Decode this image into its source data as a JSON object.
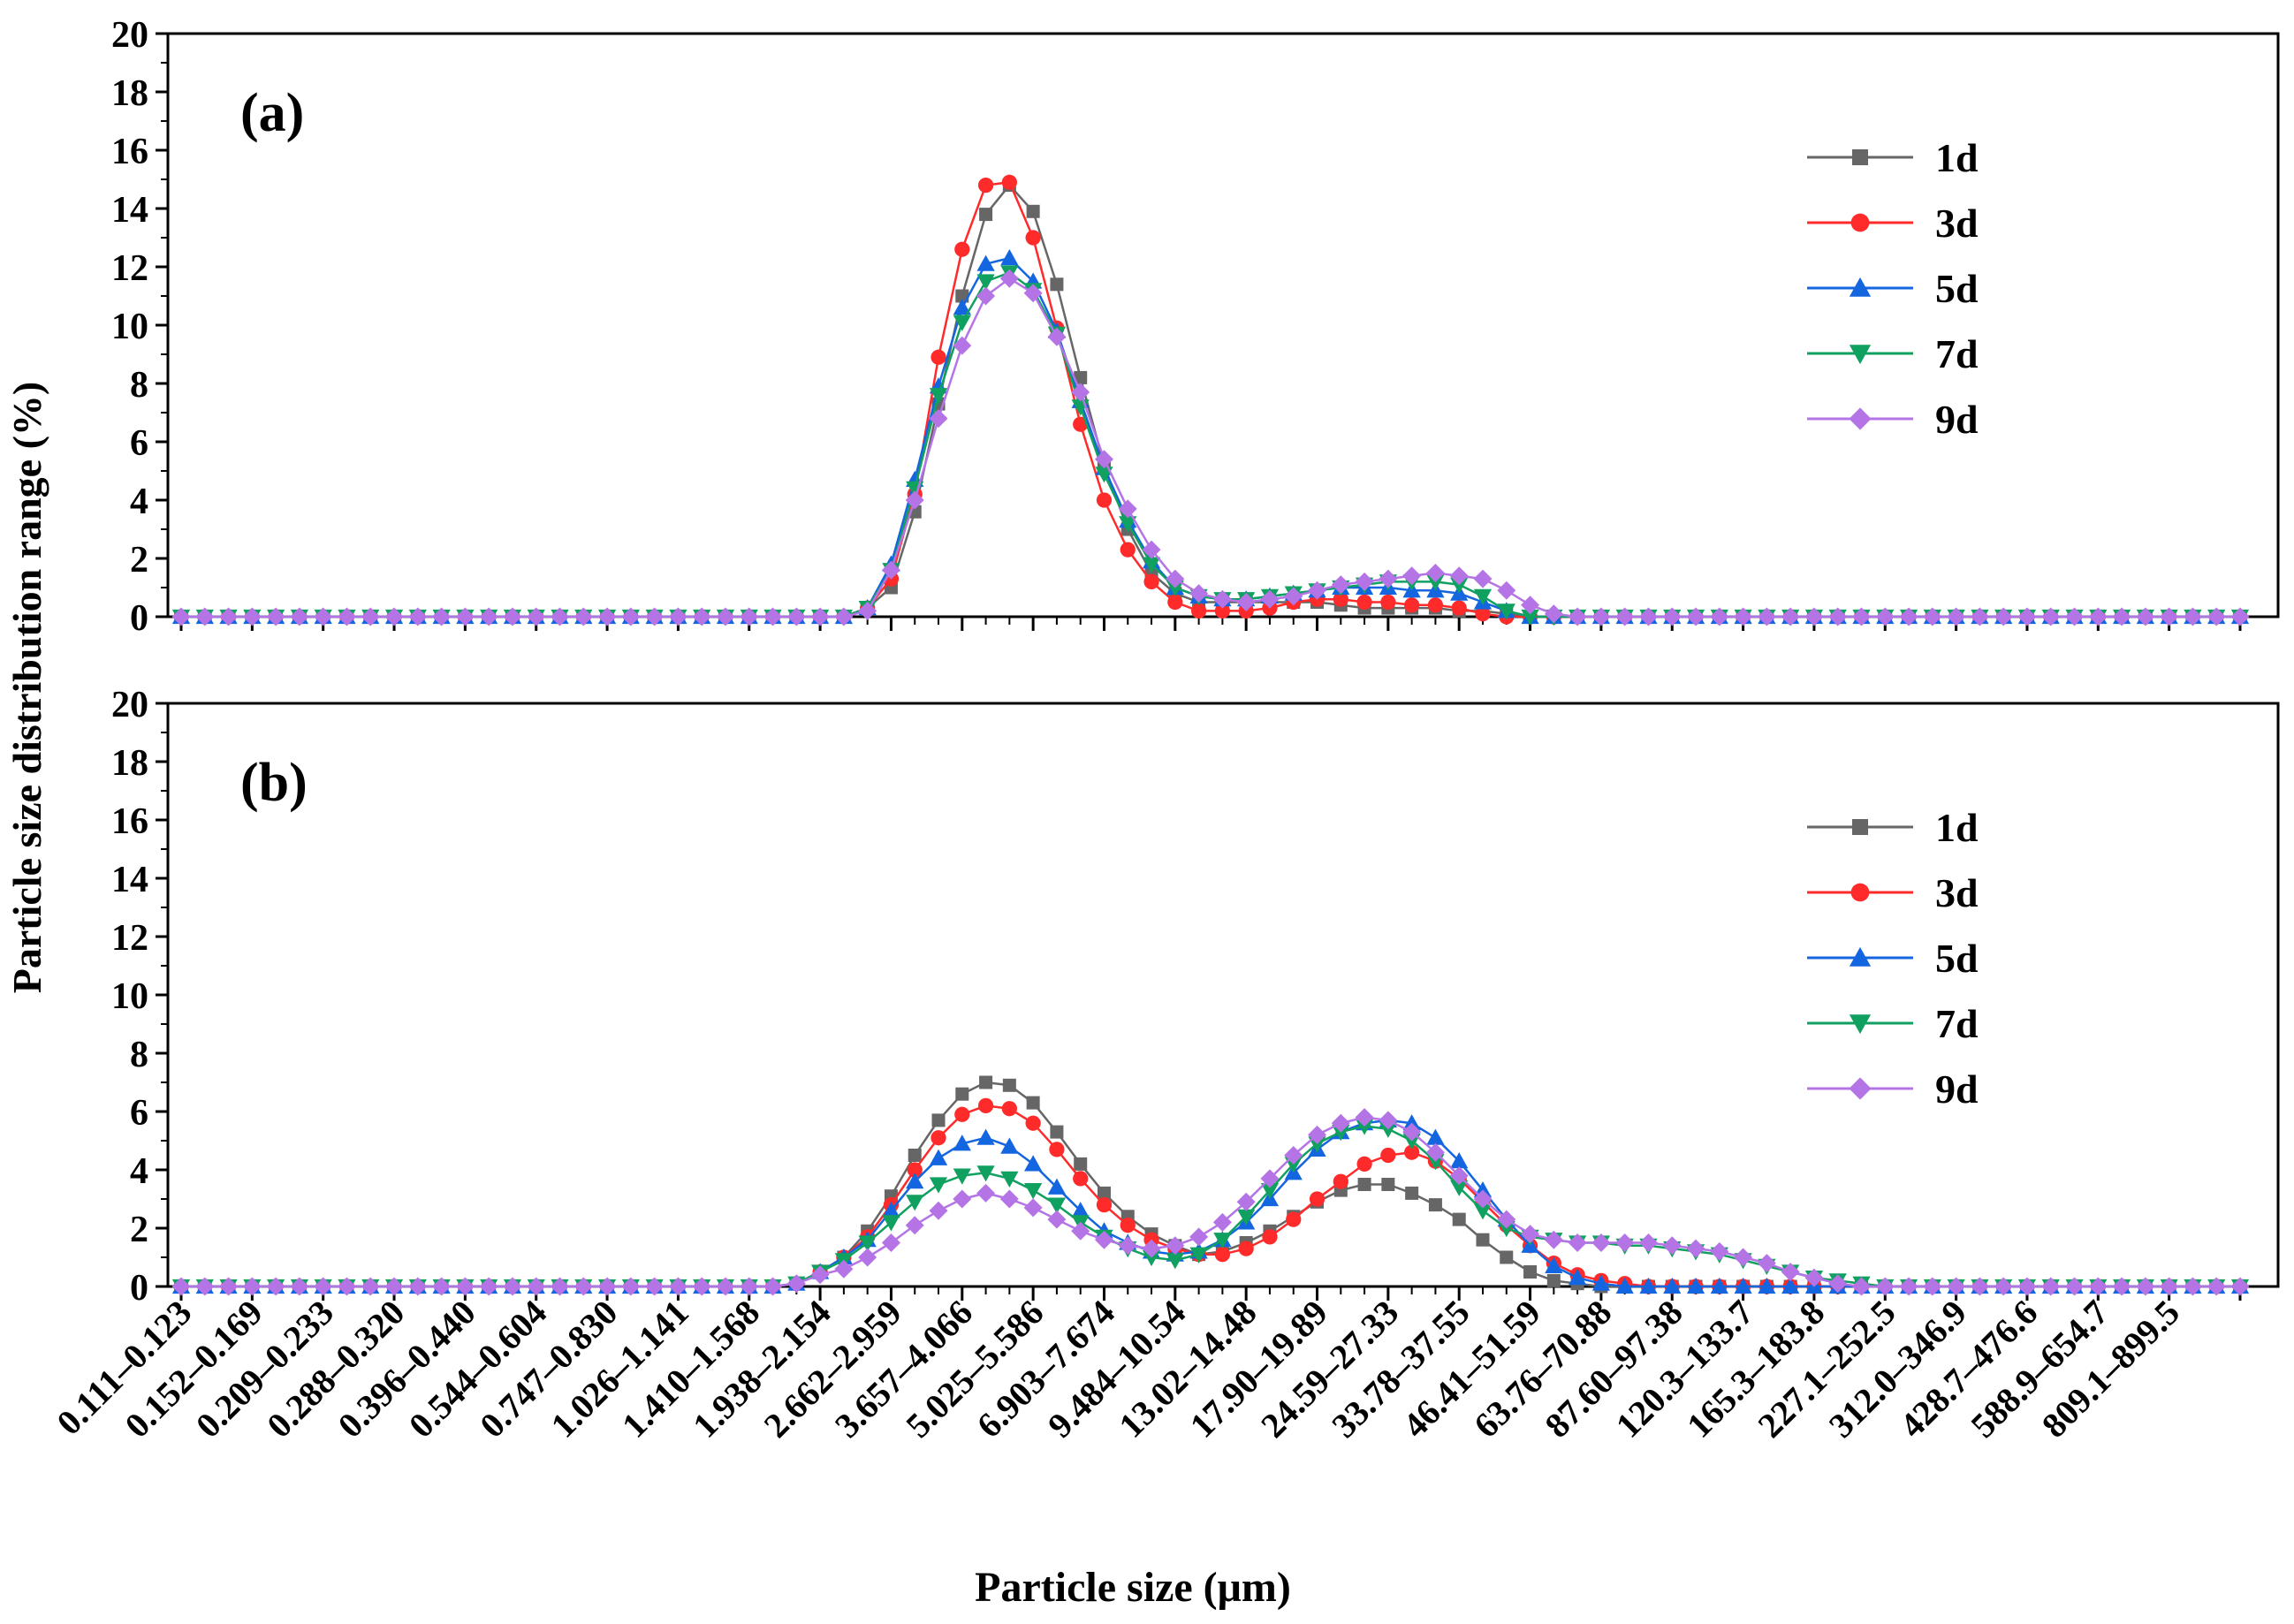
{
  "figure": {
    "ylabel": "Particle size distribution range (%)",
    "xlabel": "Particle size (μm)",
    "x_tick_labels": [
      "0.111–0.123",
      "0.152–0.169",
      "0.209–0.233",
      "0.288–0.320",
      "0.396–0.440",
      "0.544–0.604",
      "0.747–0.830",
      "1.026–1.141",
      "1.410–1.568",
      "1.938–2.154",
      "2.662–2.959",
      "3.657–4.066",
      "5.025–5.586",
      "6.903–7.674",
      "9.484–10.54",
      "13.02–14.48",
      "17.90–19.89",
      "24.59–27.33",
      "33.78–37.55",
      "46.41–51.59",
      "63.76–70.88",
      "87.60–97.38",
      "120.3–133.7",
      "165.3–183.8",
      "227.1–252.5",
      "312.0–346.9",
      "428.7–476.6",
      "588.9–654.7",
      "809.1–899.5"
    ]
  },
  "colors": {
    "1d": "#666666",
    "3d": "#ff2a2a",
    "5d": "#1466e0",
    "7d": "#10a060",
    "9d": "#b574e6"
  },
  "chart_data": [
    {
      "type": "line",
      "panel_label": "(a)",
      "ylim": [
        0,
        20
      ],
      "yticks": [
        0,
        2,
        4,
        6,
        8,
        10,
        12,
        14,
        16,
        18,
        20
      ],
      "x_points": 88,
      "x_tick_every": 3,
      "series": [
        {
          "name": "1d",
          "marker": "square",
          "values": [
            0,
            0,
            0,
            0,
            0,
            0,
            0,
            0,
            0,
            0,
            0,
            0,
            0,
            0,
            0,
            0,
            0,
            0,
            0,
            0,
            0,
            0,
            0,
            0,
            0,
            0,
            0,
            0,
            0,
            0.3,
            1.0,
            3.6,
            7.3,
            11.0,
            13.8,
            14.8,
            13.9,
            11.4,
            8.2,
            5.2,
            3.0,
            1.5,
            0.8,
            0.5,
            0.5,
            0.5,
            0.5,
            0.5,
            0.5,
            0.4,
            0.3,
            0.3,
            0.3,
            0.3,
            0.2,
            0.2,
            0.1,
            0,
            0,
            0,
            0,
            0,
            0,
            0,
            0,
            0,
            0,
            0,
            0,
            0,
            0,
            0,
            0,
            0,
            0,
            0,
            0,
            0,
            0,
            0,
            0,
            0,
            0,
            0,
            0,
            0,
            0,
            0
          ]
        },
        {
          "name": "3d",
          "marker": "circle",
          "values": [
            0,
            0,
            0,
            0,
            0,
            0,
            0,
            0,
            0,
            0,
            0,
            0,
            0,
            0,
            0,
            0,
            0,
            0,
            0,
            0,
            0,
            0,
            0,
            0,
            0,
            0,
            0,
            0,
            0,
            0.3,
            1.3,
            4.2,
            8.9,
            12.6,
            14.8,
            14.9,
            13.0,
            9.9,
            6.6,
            4.0,
            2.3,
            1.2,
            0.5,
            0.2,
            0.2,
            0.2,
            0.3,
            0.5,
            0.6,
            0.6,
            0.5,
            0.5,
            0.4,
            0.4,
            0.3,
            0.1,
            0,
            0,
            0,
            0,
            0,
            0,
            0,
            0,
            0,
            0,
            0,
            0,
            0,
            0,
            0,
            0,
            0,
            0,
            0,
            0,
            0,
            0,
            0,
            0,
            0,
            0,
            0,
            0,
            0,
            0,
            0,
            0
          ]
        },
        {
          "name": "5d",
          "marker": "triangle-up",
          "values": [
            0,
            0,
            0,
            0,
            0,
            0,
            0,
            0,
            0,
            0,
            0,
            0,
            0,
            0,
            0,
            0,
            0,
            0,
            0,
            0,
            0,
            0,
            0,
            0,
            0,
            0,
            0,
            0,
            0,
            0.3,
            1.8,
            4.7,
            7.9,
            10.6,
            12.1,
            12.3,
            11.5,
            9.8,
            7.4,
            5.1,
            3.3,
            1.9,
            1.0,
            0.7,
            0.6,
            0.6,
            0.7,
            0.8,
            0.9,
            1.0,
            1.0,
            1.0,
            0.9,
            0.9,
            0.8,
            0.5,
            0.2,
            0,
            0,
            0,
            0,
            0,
            0,
            0,
            0,
            0,
            0,
            0,
            0,
            0,
            0,
            0,
            0,
            0,
            0,
            0,
            0,
            0,
            0,
            0,
            0,
            0,
            0,
            0,
            0,
            0,
            0,
            0
          ]
        },
        {
          "name": "7d",
          "marker": "triangle-down",
          "values": [
            0,
            0,
            0,
            0,
            0,
            0,
            0,
            0,
            0,
            0,
            0,
            0,
            0,
            0,
            0,
            0,
            0,
            0,
            0,
            0,
            0,
            0,
            0,
            0,
            0,
            0,
            0,
            0,
            0,
            0.3,
            1.6,
            4.4,
            7.6,
            10.1,
            11.5,
            11.8,
            11.2,
            9.7,
            7.2,
            4.9,
            3.2,
            1.8,
            1.0,
            0.7,
            0.6,
            0.6,
            0.7,
            0.8,
            0.9,
            1.0,
            1.1,
            1.2,
            1.2,
            1.2,
            1.1,
            0.7,
            0.2,
            0,
            0,
            0,
            0,
            0,
            0,
            0,
            0,
            0,
            0,
            0,
            0,
            0,
            0,
            0,
            0,
            0,
            0,
            0,
            0,
            0,
            0,
            0,
            0,
            0,
            0,
            0,
            0,
            0,
            0,
            0
          ]
        },
        {
          "name": "9d",
          "marker": "diamond",
          "values": [
            0,
            0,
            0,
            0,
            0,
            0,
            0,
            0,
            0,
            0,
            0,
            0,
            0,
            0,
            0,
            0,
            0,
            0,
            0,
            0,
            0,
            0,
            0,
            0,
            0,
            0,
            0,
            0,
            0,
            0.2,
            1.6,
            4.0,
            6.8,
            9.3,
            11.0,
            11.6,
            11.1,
            9.6,
            7.7,
            5.4,
            3.7,
            2.3,
            1.3,
            0.8,
            0.6,
            0.5,
            0.6,
            0.7,
            0.9,
            1.1,
            1.2,
            1.3,
            1.4,
            1.5,
            1.4,
            1.3,
            0.9,
            0.4,
            0.1,
            0,
            0,
            0,
            0,
            0,
            0,
            0,
            0,
            0,
            0,
            0,
            0,
            0,
            0,
            0,
            0,
            0,
            0,
            0,
            0,
            0,
            0,
            0,
            0,
            0,
            0,
            0,
            0,
            0
          ]
        }
      ]
    },
    {
      "type": "line",
      "panel_label": "(b)",
      "ylim": [
        0,
        20
      ],
      "yticks": [
        0,
        2,
        4,
        6,
        8,
        10,
        12,
        14,
        16,
        18,
        20
      ],
      "x_points": 88,
      "x_tick_every": 3,
      "series": [
        {
          "name": "1d",
          "marker": "square",
          "values": [
            0,
            0,
            0,
            0,
            0,
            0,
            0,
            0,
            0,
            0,
            0,
            0,
            0,
            0,
            0,
            0,
            0,
            0,
            0,
            0,
            0,
            0,
            0,
            0,
            0,
            0,
            0.1,
            0.5,
            1.0,
            1.9,
            3.1,
            4.5,
            5.7,
            6.6,
            7.0,
            6.9,
            6.3,
            5.3,
            4.2,
            3.2,
            2.4,
            1.8,
            1.4,
            1.1,
            1.2,
            1.5,
            1.9,
            2.4,
            2.9,
            3.3,
            3.5,
            3.5,
            3.2,
            2.8,
            2.3,
            1.6,
            1.0,
            0.5,
            0.2,
            0.1,
            0,
            0,
            0,
            0,
            0,
            0,
            0,
            0,
            0,
            0,
            0,
            0,
            0,
            0,
            0,
            0,
            0,
            0,
            0,
            0,
            0,
            0,
            0,
            0,
            0,
            0,
            0,
            0
          ]
        },
        {
          "name": "3d",
          "marker": "circle",
          "values": [
            0,
            0,
            0,
            0,
            0,
            0,
            0,
            0,
            0,
            0,
            0,
            0,
            0,
            0,
            0,
            0,
            0,
            0,
            0,
            0,
            0,
            0,
            0,
            0,
            0,
            0,
            0.1,
            0.5,
            1.0,
            1.7,
            2.8,
            4.0,
            5.1,
            5.9,
            6.2,
            6.1,
            5.6,
            4.7,
            3.7,
            2.8,
            2.1,
            1.6,
            1.3,
            1.1,
            1.1,
            1.3,
            1.7,
            2.3,
            3.0,
            3.6,
            4.2,
            4.5,
            4.6,
            4.3,
            3.7,
            2.9,
            2.1,
            1.4,
            0.8,
            0.4,
            0.2,
            0.1,
            0,
            0,
            0,
            0,
            0,
            0,
            0,
            0,
            0,
            0,
            0,
            0,
            0,
            0,
            0,
            0,
            0,
            0,
            0,
            0,
            0,
            0,
            0,
            0,
            0,
            0
          ]
        },
        {
          "name": "5d",
          "marker": "triangle-up",
          "values": [
            0,
            0,
            0,
            0,
            0,
            0,
            0,
            0,
            0,
            0,
            0,
            0,
            0,
            0,
            0,
            0,
            0,
            0,
            0,
            0,
            0,
            0,
            0,
            0,
            0,
            0,
            0.1,
            0.5,
            1.0,
            1.6,
            2.6,
            3.6,
            4.4,
            4.9,
            5.1,
            4.8,
            4.2,
            3.4,
            2.6,
            1.9,
            1.5,
            1.2,
            1.1,
            1.2,
            1.6,
            2.2,
            3.0,
            3.9,
            4.7,
            5.3,
            5.6,
            5.7,
            5.6,
            5.1,
            4.3,
            3.3,
            2.3,
            1.4,
            0.7,
            0.3,
            0.1,
            0,
            0,
            0,
            0,
            0,
            0,
            0,
            0,
            0,
            0,
            0,
            0,
            0,
            0,
            0,
            0,
            0,
            0,
            0,
            0,
            0,
            0,
            0,
            0,
            0,
            0,
            0
          ]
        },
        {
          "name": "7d",
          "marker": "triangle-down",
          "values": [
            0,
            0,
            0,
            0,
            0,
            0,
            0,
            0,
            0,
            0,
            0,
            0,
            0,
            0,
            0,
            0,
            0,
            0,
            0,
            0,
            0,
            0,
            0,
            0,
            0,
            0,
            0.1,
            0.5,
            0.9,
            1.5,
            2.2,
            2.9,
            3.5,
            3.8,
            3.9,
            3.7,
            3.3,
            2.8,
            2.2,
            1.7,
            1.3,
            1.0,
            0.9,
            1.1,
            1.6,
            2.4,
            3.3,
            4.2,
            4.9,
            5.3,
            5.5,
            5.4,
            5.0,
            4.3,
            3.4,
            2.6,
            2.0,
            1.7,
            1.6,
            1.5,
            1.5,
            1.4,
            1.4,
            1.3,
            1.2,
            1.1,
            0.9,
            0.7,
            0.5,
            0.3,
            0.2,
            0.1,
            0,
            0,
            0,
            0,
            0,
            0,
            0,
            0,
            0,
            0,
            0,
            0,
            0,
            0,
            0,
            0
          ]
        },
        {
          "name": "9d",
          "marker": "diamond",
          "values": [
            0,
            0,
            0,
            0,
            0,
            0,
            0,
            0,
            0,
            0,
            0,
            0,
            0,
            0,
            0,
            0,
            0,
            0,
            0,
            0,
            0,
            0,
            0,
            0,
            0,
            0,
            0.1,
            0.4,
            0.6,
            1.0,
            1.5,
            2.1,
            2.6,
            3.0,
            3.2,
            3.0,
            2.7,
            2.3,
            1.9,
            1.6,
            1.4,
            1.3,
            1.4,
            1.7,
            2.2,
            2.9,
            3.7,
            4.5,
            5.2,
            5.6,
            5.8,
            5.7,
            5.3,
            4.6,
            3.8,
            3.0,
            2.3,
            1.8,
            1.6,
            1.5,
            1.5,
            1.5,
            1.5,
            1.4,
            1.3,
            1.2,
            1.0,
            0.8,
            0.5,
            0.3,
            0.1,
            0,
            0,
            0,
            0,
            0,
            0,
            0,
            0,
            0,
            0,
            0,
            0,
            0,
            0,
            0,
            0,
            0
          ]
        }
      ]
    }
  ]
}
